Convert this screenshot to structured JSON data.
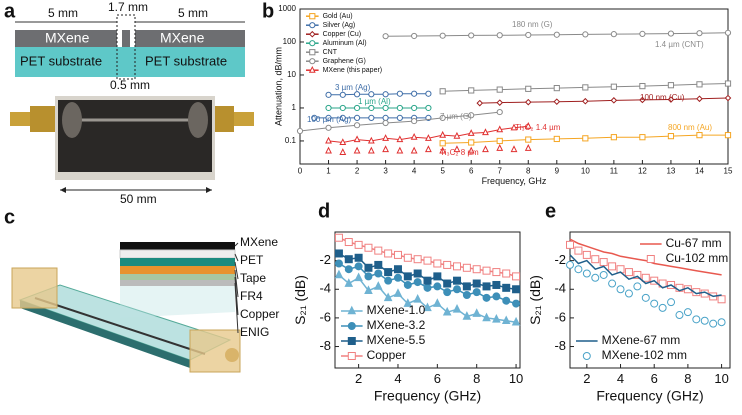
{
  "panel_labels": [
    "a",
    "b",
    "c",
    "d",
    "e"
  ],
  "panel_a": {
    "left_width": "5 mm",
    "gap_width": "1.7 mm",
    "right_width": "5 mm",
    "left_layer": "MXene",
    "right_layer": "MXene",
    "left_substrate": "PET substrate",
    "right_substrate": "PET substrate",
    "slot_width": "0.5 mm",
    "length": "50 mm"
  },
  "panel_c": {
    "layers": [
      "MXene",
      "PET",
      "Tape",
      "FR4",
      "Copper",
      "ENIG"
    ]
  },
  "chart_data": [
    {
      "type": "line",
      "xlabel": "Frequency, GHz",
      "ylabel": "Attenuation, dB/mm",
      "xlim": [
        0,
        15
      ],
      "xticks": [
        0,
        1,
        2,
        3,
        4,
        5,
        6,
        7,
        8,
        9,
        10,
        11,
        12,
        13,
        14,
        15
      ],
      "ylim": [
        0.02,
        1000
      ],
      "yticks": [
        0.1,
        1,
        10,
        100,
        1000
      ],
      "log_y": true,
      "grid": false,
      "legend": "upper left",
      "series": [
        {
          "name": "Gold (Au)",
          "color": "#f5a623",
          "marker": "square",
          "filled": false,
          "line": true,
          "label": "800 nm (Au)",
          "x": [
            5,
            6,
            7,
            8,
            9,
            10,
            11,
            12,
            13,
            14,
            15
          ],
          "values": [
            0.085,
            0.09,
            0.1,
            0.11,
            0.115,
            0.12,
            0.13,
            0.13,
            0.14,
            0.15,
            0.15
          ]
        },
        {
          "name": "Silver (Ag)",
          "color": "#3f6ea8",
          "marker": "circle",
          "filled": false,
          "line": true,
          "label": "3 µm (Ag)",
          "x": [
            1,
            1.5,
            2,
            2.5,
            3,
            3.5,
            4,
            4.5
          ],
          "values": [
            2.5,
            2.5,
            2.6,
            2.6,
            2.6,
            2.7,
            2.7,
            2.7
          ]
        },
        {
          "name": "Copper (Cu)",
          "color": "#a02020",
          "marker": "diamond",
          "filled": false,
          "line": true,
          "label": "100 nm (Cu)",
          "x": [
            6.3,
            7,
            8,
            9,
            10,
            11,
            12,
            13,
            14,
            15
          ],
          "values": [
            1.4,
            1.45,
            1.5,
            1.55,
            1.6,
            1.7,
            1.75,
            1.8,
            1.9,
            2
          ]
        },
        {
          "name": "Aluminum (Al)",
          "color": "#2aa58a",
          "marker": "circle",
          "filled": false,
          "line": true,
          "label": "1 µm (Al)",
          "x": [
            1,
            1.5,
            2,
            2.5,
            3,
            3.5,
            4,
            4.5
          ],
          "values": [
            1,
            1,
            1,
            1,
            1,
            1,
            1,
            1
          ]
        },
        {
          "name": "CNT",
          "color": "#8a8a8a",
          "marker": "square",
          "filled": false,
          "line": true,
          "label": "1.4 µm (CNT)",
          "x": [
            5,
            6,
            7,
            8,
            9,
            10,
            11,
            12,
            13,
            14,
            15
          ],
          "values": [
            3.2,
            3.4,
            3.6,
            3.8,
            4,
            4.2,
            4.4,
            4.6,
            4.9,
            5.2,
            5.5
          ]
        },
        {
          "name": "Graphene (G)",
          "color": "#8a8a8a",
          "marker": "circle",
          "filled": false,
          "line": true,
          "label": "180 nm (G)",
          "x": [
            3,
            4,
            5,
            6,
            7,
            8,
            9,
            10,
            11,
            12,
            13,
            14,
            15
          ],
          "values": [
            150,
            152,
            155,
            158,
            160,
            163,
            166,
            170,
            173,
            176,
            180,
            185,
            190
          ]
        },
        {
          "name": "MXene (this paper)",
          "color": "#e03030",
          "marker": "triangle",
          "filled": false,
          "line": true,
          "label": "Ti₃C₂ 1.4 µm",
          "x": [
            1,
            1.5,
            2,
            2.5,
            3,
            3.5,
            4,
            4.5,
            5,
            5.5,
            6,
            6.5,
            7,
            7.5,
            8
          ],
          "values": [
            0.1,
            0.09,
            0.11,
            0.1,
            0.12,
            0.11,
            0.13,
            0.12,
            0.15,
            0.14,
            0.17,
            0.18,
            0.22,
            0.25,
            0.28
          ]
        },
        {
          "color": "#3f6ea8",
          "marker": "circle",
          "filled": false,
          "line": true,
          "label": "100 µm (Ag)",
          "x": [
            0.5,
            1,
            1.5,
            2,
            2.5,
            3,
            3.5,
            4,
            4.5
          ],
          "values": [
            0.5,
            0.5,
            0.5,
            0.5,
            0.5,
            0.5,
            0.5,
            0.5,
            0.5
          ]
        },
        {
          "color": "#8a8a8a",
          "marker": "circle",
          "filled": false,
          "line": true,
          "label": "7 µm (G)",
          "x": [
            0,
            1,
            2,
            3,
            4,
            5,
            6,
            7
          ],
          "values": [
            0.2,
            0.25,
            0.3,
            0.35,
            0.4,
            0.5,
            0.6,
            0.75
          ]
        },
        {
          "color": "#e03030",
          "marker": "triangle",
          "filled": false,
          "line": false,
          "label": "Ti₃C₂ 8 µm",
          "x": [
            1,
            1.5,
            2,
            2.5,
            3,
            3.5,
            4,
            4.5,
            5,
            5.5,
            6,
            6.5,
            7,
            7.5,
            8
          ],
          "values": [
            0.05,
            0.045,
            0.05,
            0.05,
            0.055,
            0.05,
            0.05,
            0.055,
            0.05,
            0.055,
            0.05,
            0.055,
            0.06,
            0.055,
            0.06
          ]
        }
      ]
    },
    {
      "type": "line",
      "xlabel": "Frequency (GHz)",
      "ylabel": "S₂₁ (dB)",
      "xlim": [
        0.8,
        10.2
      ],
      "xticks": [
        2,
        4,
        6,
        8,
        10
      ],
      "ylim": [
        -9.5,
        0
      ],
      "yticks": [
        -8,
        -6,
        -4,
        -2
      ],
      "grid": false,
      "legend": "lower left",
      "x": [
        1,
        1.5,
        2,
        2.5,
        3,
        3.5,
        4,
        4.5,
        5,
        5.5,
        6,
        6.5,
        7,
        7.5,
        8,
        8.5,
        9,
        9.5,
        10
      ],
      "series": [
        {
          "name": "MXene-1.0",
          "color": "#6fb3d3",
          "marker": "triangle",
          "filled": true,
          "line": true,
          "values": [
            -3.0,
            -3.6,
            -3.2,
            -4.1,
            -3.8,
            -4.6,
            -4.3,
            -5.0,
            -4.7,
            -5.3,
            -5.0,
            -5.6,
            -5.4,
            -5.9,
            -5.7,
            -6.0,
            -6.1,
            -6.2,
            -6.3
          ]
        },
        {
          "name": "MXene-3.2",
          "color": "#3d8fb8",
          "marker": "circle",
          "filled": true,
          "line": true,
          "values": [
            -2.2,
            -2.6,
            -2.4,
            -3.1,
            -2.9,
            -3.4,
            -3.2,
            -3.7,
            -3.5,
            -3.9,
            -3.8,
            -4.2,
            -4.0,
            -4.4,
            -4.2,
            -4.6,
            -4.5,
            -4.8,
            -5.0
          ]
        },
        {
          "name": "MXene-5.5",
          "color": "#1f5f8b",
          "marker": "square",
          "filled": true,
          "line": true,
          "values": [
            -1.5,
            -1.9,
            -1.8,
            -2.5,
            -2.3,
            -2.8,
            -2.6,
            -3.1,
            -2.9,
            -3.4,
            -3.1,
            -3.6,
            -3.4,
            -3.8,
            -3.6,
            -3.8,
            -3.7,
            -3.9,
            -4.0
          ]
        },
        {
          "name": "Copper",
          "color": "#f08080",
          "marker": "square",
          "filled": false,
          "line": true,
          "values": [
            -0.4,
            -0.7,
            -0.9,
            -1.1,
            -1.3,
            -1.5,
            -1.6,
            -1.8,
            -1.9,
            -2.0,
            -2.2,
            -2.3,
            -2.4,
            -2.5,
            -2.6,
            -2.7,
            -2.8,
            -2.9,
            -3.1
          ]
        }
      ]
    },
    {
      "type": "line",
      "xlabel": "Frequency (GHz)",
      "ylabel": "S₂₁ (dB)",
      "xlim": [
        1,
        10.5
      ],
      "xticks": [
        2,
        4,
        6,
        8,
        10
      ],
      "ylim": [
        -9.5,
        0
      ],
      "yticks": [
        -8,
        -6,
        -4,
        -2
      ],
      "grid": false,
      "legend": "lower left",
      "x": [
        1,
        1.5,
        2,
        2.5,
        3,
        3.5,
        4,
        4.5,
        5,
        5.5,
        6,
        6.5,
        7,
        7.5,
        8,
        8.5,
        9,
        9.5,
        10
      ],
      "series": [
        {
          "name": "Cu-67 mm",
          "color": "#e8594f",
          "marker": "none",
          "filled": false,
          "line": true,
          "legend": "upper right",
          "values": [
            -0.5,
            -0.8,
            -1.0,
            -1.2,
            -1.4,
            -1.5,
            -1.7,
            -1.8,
            -1.9,
            -2.0,
            -2.2,
            -2.3,
            -2.4,
            -2.5,
            -2.6,
            -2.7,
            -2.8,
            -2.9,
            -3.0
          ]
        },
        {
          "name": "Cu-102 mm",
          "color": "#f08080",
          "marker": "square",
          "filled": false,
          "line": false,
          "legend": "upper right",
          "values": [
            -0.9,
            -1.3,
            -1.6,
            -1.9,
            -2.1,
            -2.4,
            -2.6,
            -2.8,
            -3.0,
            -3.2,
            -3.4,
            -3.6,
            -3.7,
            -3.9,
            -4.0,
            -4.2,
            -4.3,
            -4.5,
            -4.7
          ]
        },
        {
          "name": "MXene-67 mm",
          "color": "#1f5f8b",
          "marker": "none",
          "filled": false,
          "line": true,
          "values": [
            -1.6,
            -2.2,
            -2.0,
            -2.6,
            -2.4,
            -3.0,
            -2.8,
            -3.3,
            -3.1,
            -3.6,
            -3.4,
            -3.9,
            -3.7,
            -4.1,
            -3.9,
            -4.3,
            -4.2,
            -4.5,
            -4.4
          ]
        },
        {
          "name": "MXene-102 mm",
          "color": "#4aa3c8",
          "marker": "circle",
          "filled": false,
          "line": false,
          "values": [
            -2.3,
            -2.6,
            -2.9,
            -3.2,
            -3.0,
            -3.6,
            -4.0,
            -4.3,
            -3.8,
            -4.6,
            -5.0,
            -5.3,
            -4.9,
            -5.8,
            -5.6,
            -6.1,
            -6.2,
            -6.4,
            -6.3
          ]
        }
      ]
    }
  ]
}
